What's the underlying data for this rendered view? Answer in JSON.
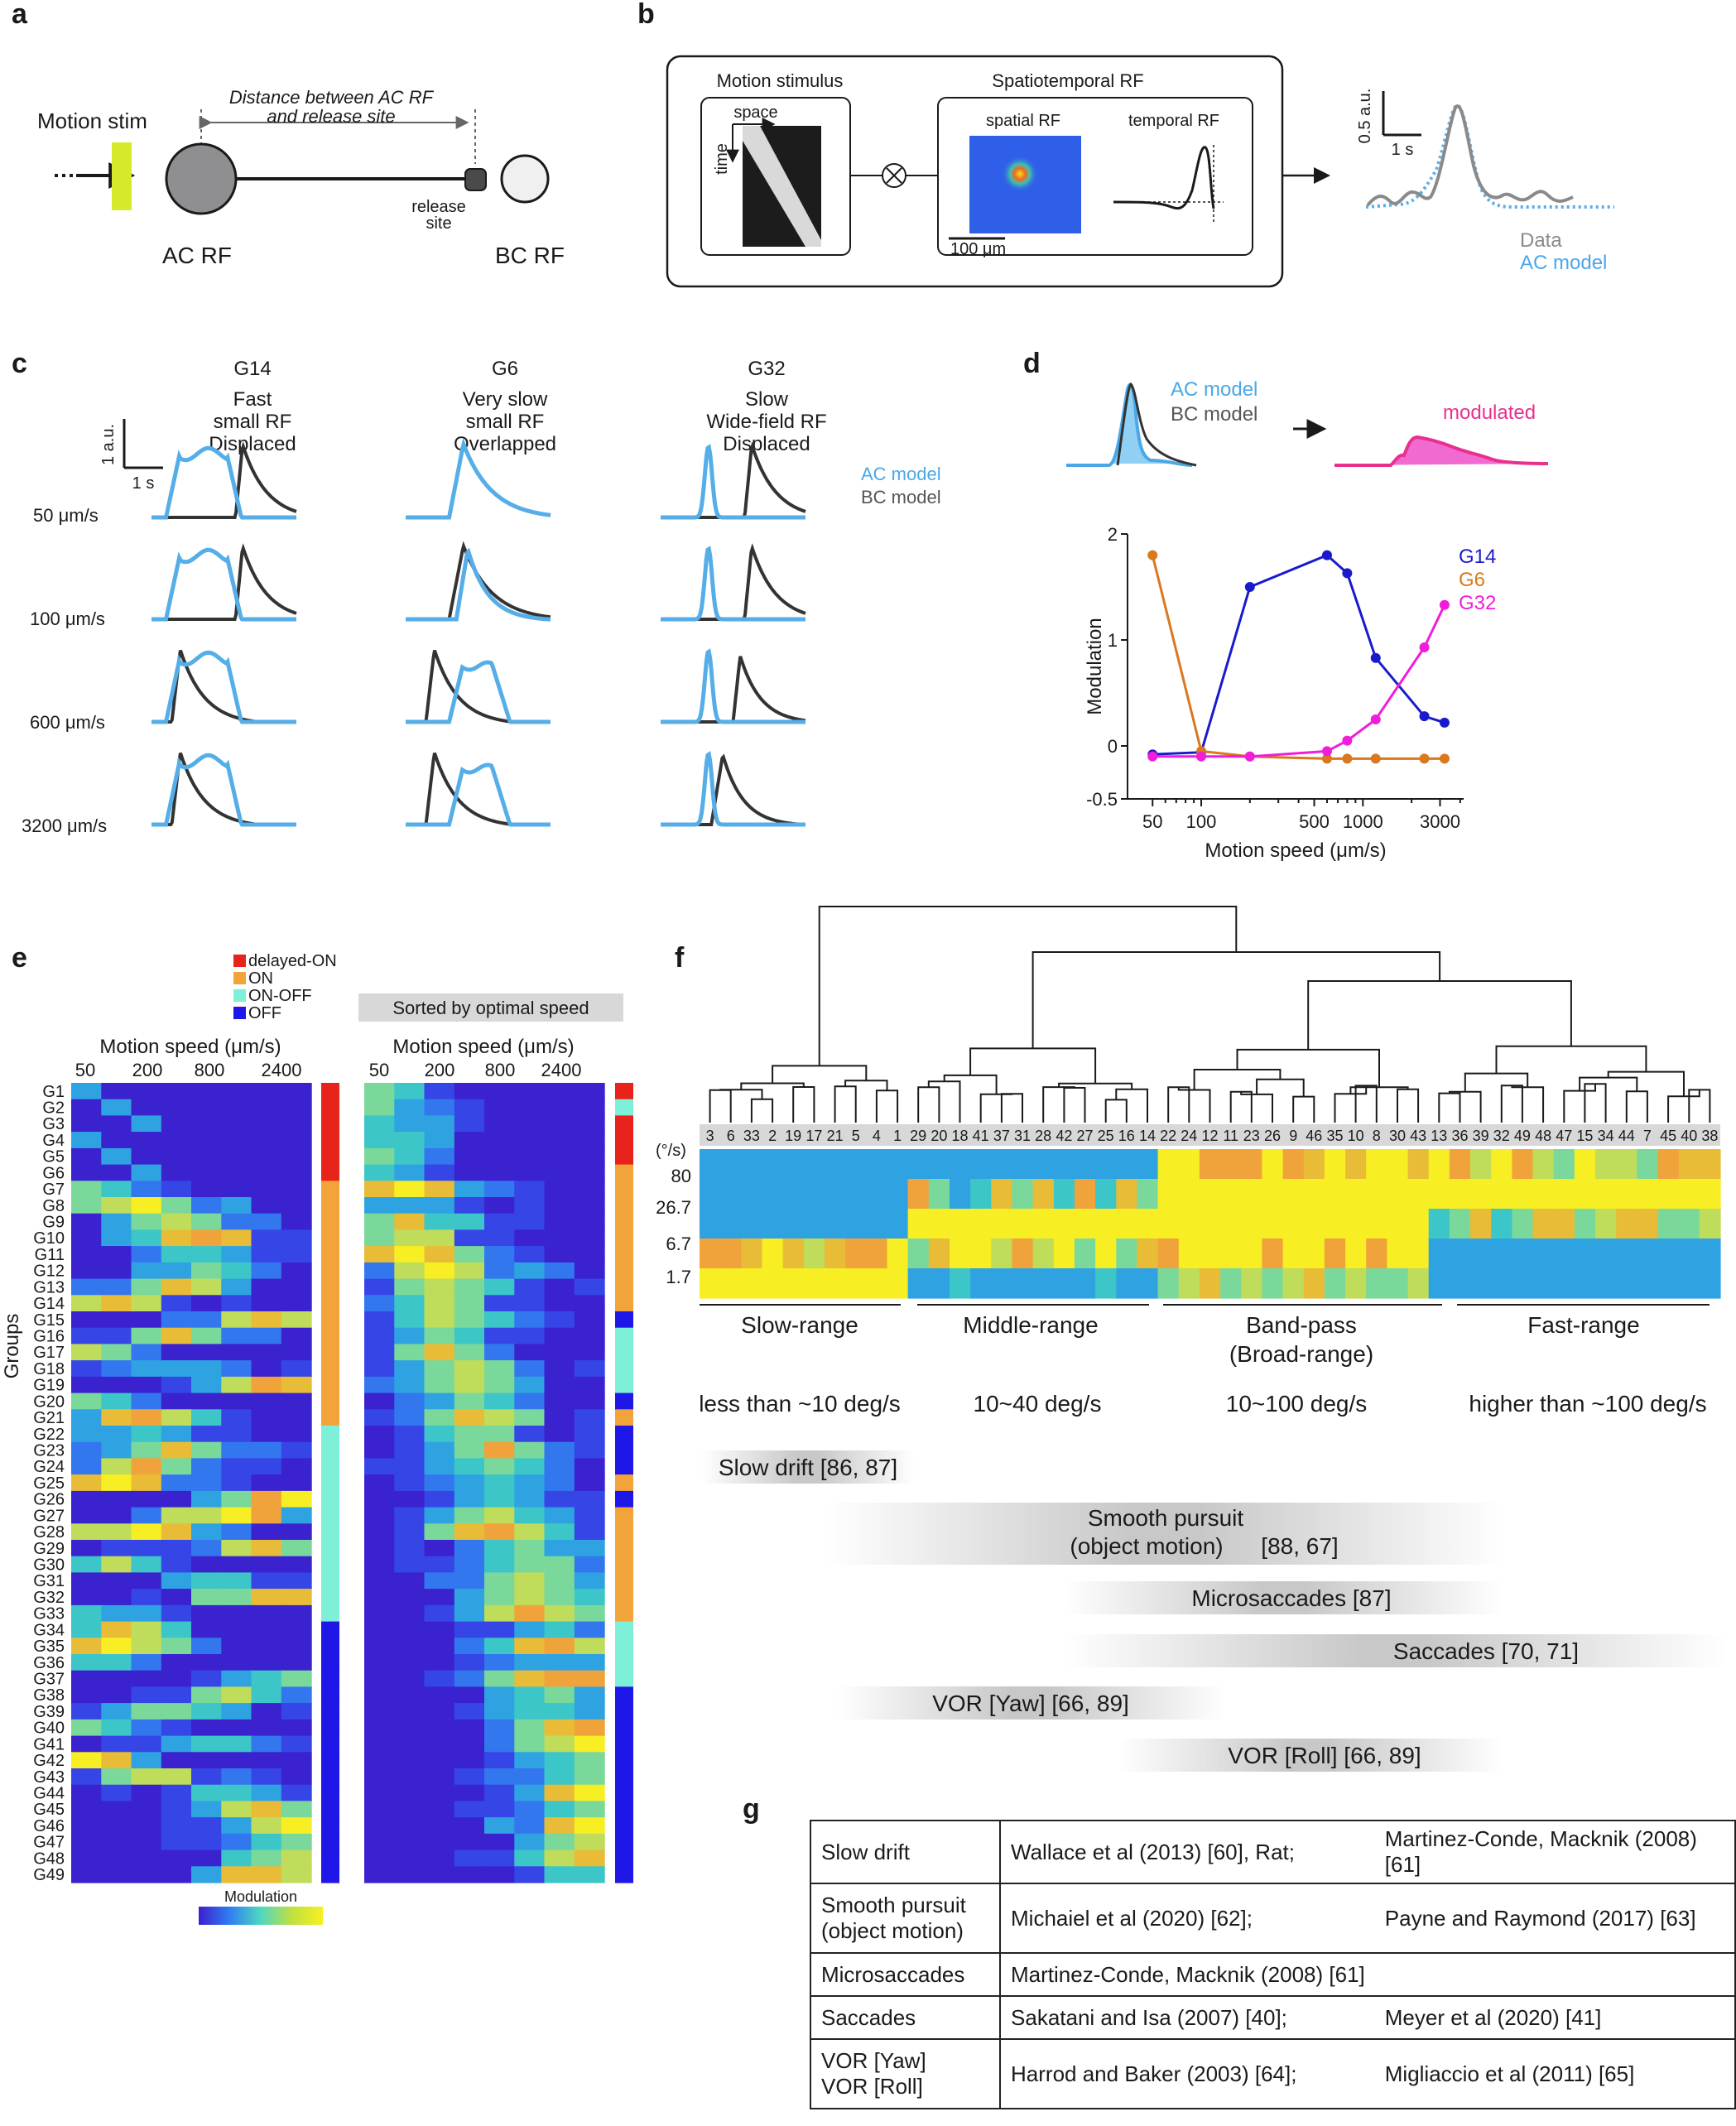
{
  "panels": {
    "a": "a",
    "b": "b",
    "c": "c",
    "d": "d",
    "e": "e",
    "f": "f",
    "g": "g"
  },
  "a": {
    "motion_stim": "Motion stim",
    "distance_line1": "Distance between AC RF",
    "distance_line2": "and release site",
    "release1": "release",
    "release2": "site",
    "ac_rf": "AC RF",
    "bc_rf": "BC RF"
  },
  "b": {
    "motion_stimulus": "Motion stimulus",
    "space": "space",
    "time": "time",
    "spatiotemporal": "Spatiotemporal RF",
    "spatial_rf": "spatial RF",
    "temporal_rf": "temporal RF",
    "scale_um": "100 μm",
    "scale_au": "0.5 a.u.",
    "scale_s": "1 s",
    "legend_data": "Data",
    "legend_model": "AC model"
  },
  "c": {
    "groups": [
      {
        "name": "G14",
        "l1": "Fast",
        "l2": "small RF",
        "l3": "Displaced"
      },
      {
        "name": "G6",
        "l1": "Very slow",
        "l2": "small RF",
        "l3": "Overlapped"
      },
      {
        "name": "G32",
        "l1": "Slow",
        "l2": "Wide-field RF",
        "l3": "Displaced"
      }
    ],
    "speeds": [
      "50 μm/s",
      "100 μm/s",
      "600 μm/s",
      "3200 μm/s"
    ],
    "scale_au": "1 a.u.",
    "scale_s": "1 s",
    "legend_ac": "AC model",
    "legend_bc": "BC model"
  },
  "d": {
    "legend_ac": "AC model",
    "legend_bc": "BC model",
    "modulated": "modulated"
  },
  "e": {
    "legend": [
      {
        "label": "delayed-ON",
        "color": "#e8231b"
      },
      {
        "label": "ON",
        "color": "#f2a43a"
      },
      {
        "label": "ON-OFF",
        "color": "#7ff0d8"
      },
      {
        "label": "OFF",
        "color": "#1f17e8"
      }
    ],
    "sorted_label": "Sorted by optimal speed",
    "axis_title": "Motion speed (μm/s)",
    "ticks": [
      "50",
      "200",
      "800",
      "2400"
    ],
    "ylabel": "Groups",
    "colorbar_label": "Modulation",
    "groups": [
      "G1",
      "G2",
      "G3",
      "G4",
      "G5",
      "G6",
      "G7",
      "G8",
      "G9",
      "G10",
      "G11",
      "G12",
      "G13",
      "G14",
      "G15",
      "G16",
      "G17",
      "G18",
      "G19",
      "G20",
      "G21",
      "G22",
      "G23",
      "G24",
      "G25",
      "G26",
      "G27",
      "G28",
      "G29",
      "G30",
      "G31",
      "G32",
      "G33",
      "G34",
      "G35",
      "G36",
      "G37",
      "G38",
      "G39",
      "G40",
      "G41",
      "G42",
      "G43",
      "G44",
      "G45",
      "G46",
      "G47",
      "G48",
      "G49"
    ]
  },
  "f": {
    "leaf_labels": [
      "3",
      "6",
      "33",
      "2",
      "19",
      "17",
      "21",
      "5",
      "4",
      "1",
      "29",
      "20",
      "18",
      "41",
      "37",
      "31",
      "28",
      "42",
      "27",
      "25",
      "16",
      "14",
      "22",
      "24",
      "12",
      "11",
      "23",
      "26",
      "9",
      "46",
      "35",
      "10",
      "8",
      "30",
      "43",
      "13",
      "36",
      "39",
      "32",
      "49",
      "48",
      "47",
      "15",
      "34",
      "44",
      "7",
      "45",
      "40",
      "38"
    ],
    "y_unit": "(°/s)",
    "y_ticks": [
      "80",
      "26.7",
      "6.7",
      "1.7"
    ],
    "ranges": [
      {
        "name": "Slow-range",
        "sub": ""
      },
      {
        "name": "Middle-range",
        "sub": ""
      },
      {
        "name": "Band-pass",
        "sub": "(Broad-range)"
      },
      {
        "name": "Fast-range",
        "sub": ""
      }
    ],
    "speeds": [
      "less than ~10 deg/s",
      "10~40 deg/s",
      "10~100 deg/s",
      "higher than ~100 deg/s"
    ],
    "bars": [
      {
        "l1": "Slow drift [86, 87]",
        "l2": ""
      },
      {
        "l1": "Smooth pursuit",
        "l2": "(object motion)",
        "ref": "[88, 67]"
      },
      {
        "l1": "Microsaccades  [87]",
        "l2": ""
      },
      {
        "l1": "Saccades  [70, 71]",
        "l2": ""
      },
      {
        "l1": "VOR [Yaw]  [66, 89]",
        "l2": ""
      },
      {
        "l1": "VOR [Roll]  [66, 89]",
        "l2": ""
      }
    ]
  },
  "g": {
    "rows": [
      {
        "movement": "Slow drift",
        "movement2": "",
        "ref1": "Wallace et al (2013) [60], Rat;",
        "ref2": "Martinez-Conde, Macknik (2008) [61]"
      },
      {
        "movement": "Smooth pursuit",
        "movement2": "(object motion)",
        "ref1": "Michaiel et al (2020) [62];",
        "ref2": "Payne and Raymond (2017) [63]"
      },
      {
        "movement": "Microsaccades",
        "movement2": "",
        "ref1": "Martinez-Conde, Macknik (2008) [61]",
        "ref2": ""
      },
      {
        "movement": "Saccades",
        "movement2": "",
        "ref1": "Sakatani and Isa (2007) [40];",
        "ref2": "Meyer et al (2020) [41]"
      },
      {
        "movement": "VOR [Yaw]",
        "movement2": "VOR [Roll]",
        "ref1": "Harrod and Baker (2003) [64];",
        "ref2": "Migliaccio et al (2011) [65]"
      }
    ]
  },
  "chart_data": {
    "type": "line",
    "title": "",
    "xlabel": "Motion speed (μm/s)",
    "ylabel": "Modulation",
    "xscale": "log",
    "xlim": [
      35,
      4200
    ],
    "ylim": [
      -0.5,
      2
    ],
    "x_ticks": [
      "50",
      "100",
      "500",
      "1000",
      "3000"
    ],
    "y_ticks": [
      "-0.5",
      "0",
      "1",
      "2"
    ],
    "series": [
      {
        "name": "G14",
        "color": "#1a1acd",
        "x": [
          50,
          100,
          200,
          600,
          800,
          1200,
          2400,
          3200
        ],
        "values": [
          -0.08,
          -0.06,
          1.5,
          1.8,
          1.63,
          0.83,
          0.28,
          0.22
        ]
      },
      {
        "name": "G6",
        "color": "#d9781c",
        "x": [
          50,
          100,
          200,
          600,
          800,
          1200,
          2400,
          3200
        ],
        "values": [
          1.8,
          -0.05,
          -0.1,
          -0.12,
          -0.12,
          -0.12,
          -0.12,
          -0.12
        ]
      },
      {
        "name": "G32",
        "color": "#f01ddb",
        "x": [
          50,
          100,
          200,
          600,
          800,
          1200,
          2400,
          3200
        ],
        "values": [
          -0.1,
          -0.1,
          -0.1,
          -0.05,
          0.05,
          0.25,
          0.93,
          1.33
        ]
      }
    ]
  }
}
